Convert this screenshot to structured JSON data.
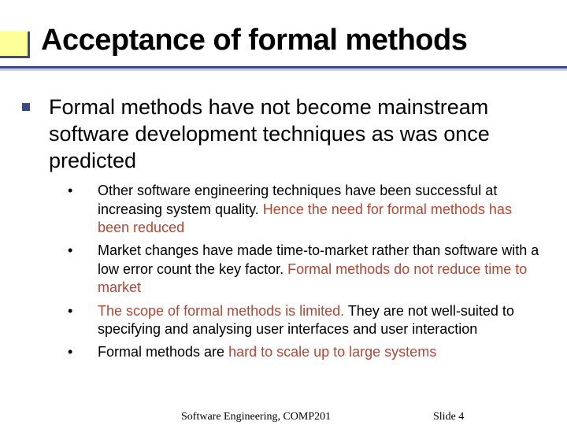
{
  "title": "Acceptance of formal methods",
  "main": "Formal methods have not become mainstream software development techniques as was once predicted",
  "subs": [
    {
      "pre": "Other software engineering techniques have been successful at increasing system quality. ",
      "hi": "Hence the need for formal methods has been reduced",
      "post": ""
    },
    {
      "pre": "Market changes have made time-to-market rather than software with a low error count the key factor. ",
      "hi": "Formal methods do not reduce time to market",
      "post": ""
    },
    {
      "pre": "",
      "hi": "The scope of formal methods is limited.",
      "post": " They are not well-suited to specifying and analysing user interfaces and user interaction"
    },
    {
      "pre": "Formal methods are ",
      "hi": "hard to scale up to large systems",
      "post": ""
    }
  ],
  "footer": {
    "course": "Software Engineering, COMP201",
    "slide": "Slide  4"
  },
  "colors": {
    "accent": "#3a4a8a",
    "highlight": "#b34733",
    "accent_box": "#ffff99"
  }
}
